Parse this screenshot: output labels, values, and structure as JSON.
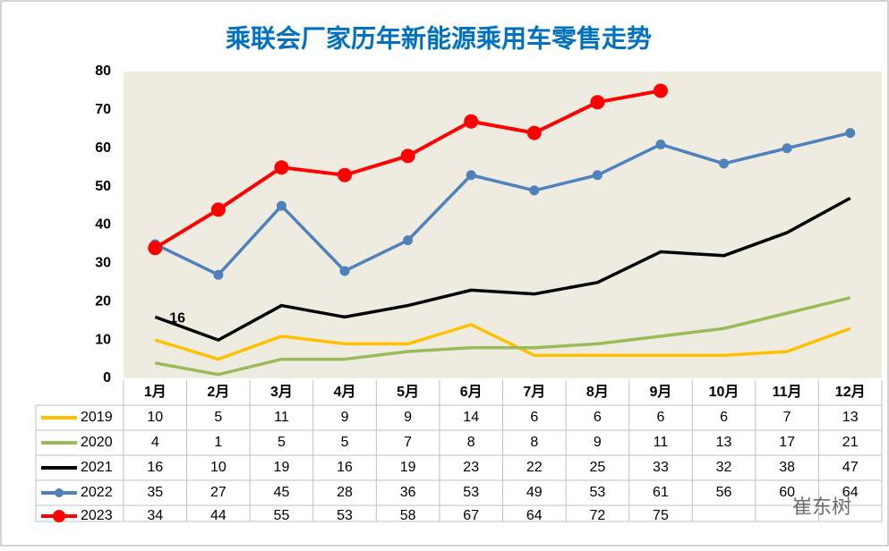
{
  "chart_data": {
    "type": "line",
    "title": "乘联会厂家历年新能源乘用车零售走势",
    "categories": [
      "1月",
      "2月",
      "3月",
      "4月",
      "5月",
      "6月",
      "7月",
      "8月",
      "9月",
      "10月",
      "11月",
      "12月"
    ],
    "series": [
      {
        "name": "2019",
        "color": "#ffc000",
        "marker": false,
        "values": [
          10,
          5,
          11,
          9,
          9,
          14,
          6,
          6,
          6,
          6,
          7,
          13
        ]
      },
      {
        "name": "2020",
        "color": "#9bbb59",
        "marker": false,
        "values": [
          4,
          1,
          5,
          5,
          7,
          8,
          8,
          9,
          11,
          13,
          17,
          21
        ]
      },
      {
        "name": "2021",
        "color": "#000000",
        "marker": false,
        "values": [
          16,
          10,
          19,
          16,
          19,
          23,
          22,
          25,
          33,
          32,
          38,
          47
        ]
      },
      {
        "name": "2022",
        "color": "#4f81bd",
        "marker": true,
        "values": [
          35,
          27,
          45,
          28,
          36,
          53,
          49,
          53,
          61,
          56,
          60,
          64
        ]
      },
      {
        "name": "2023",
        "color": "#ff0000",
        "marker": true,
        "values": [
          34,
          44,
          55,
          53,
          58,
          67,
          64,
          72,
          75,
          null,
          null,
          null
        ]
      }
    ],
    "annotation": "16",
    "watermark": "崔东树",
    "ylim": [
      0,
      80
    ],
    "yticks": [
      0,
      10,
      20,
      30,
      40,
      50,
      60,
      70,
      80
    ],
    "grid": false
  }
}
